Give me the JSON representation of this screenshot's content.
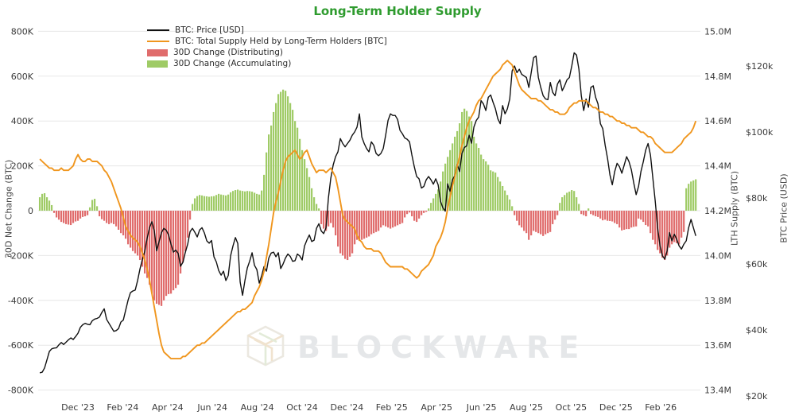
{
  "title": "Long-Term Holder Supply",
  "watermark": {
    "text": "BLOCKWARE",
    "logo": "isometric-cube-logo"
  },
  "colors": {
    "title_green": "#2e9b2e",
    "price_line": "#111111",
    "supply_line": "#f0961e",
    "distributing_red": "#e06c6c",
    "accumulating_green": "#9fcb66",
    "gridline": "#e7e7e7",
    "tick_text": "#3a3a3a",
    "watermark_gray": "#e5e7e9"
  },
  "legend": {
    "items": [
      {
        "label": "BTC: Price [USD]",
        "type": "line",
        "color": "#111111"
      },
      {
        "label": "BTC: Total Supply Held by Long-Term Holders [BTC]",
        "type": "line",
        "color": "#f0961e"
      },
      {
        "label": "30D Change (Distributing)",
        "type": "bar",
        "color": "#e06c6c"
      },
      {
        "label": "30D Change (Accumulating)",
        "type": "bar",
        "color": "#9fcb66"
      }
    ]
  },
  "axes": {
    "left": {
      "title": "30D Net Change (BTC)",
      "ticks": [
        {
          "v": 800,
          "label": "800K"
        },
        {
          "v": 600,
          "label": "600K"
        },
        {
          "v": 400,
          "label": "400K"
        },
        {
          "v": 200,
          "label": "200K"
        },
        {
          "v": 0,
          "label": "0"
        },
        {
          "v": -200,
          "label": "-200K"
        },
        {
          "v": -400,
          "label": "-400K"
        },
        {
          "v": -600,
          "label": "-600K"
        },
        {
          "v": -800,
          "label": "-800K"
        }
      ]
    },
    "right_supply": {
      "title": "LTH Supply (BTC)",
      "ticks": [
        {
          "v": 15.0,
          "label": "15.0M"
        },
        {
          "v": 14.8,
          "label": "14.8M"
        },
        {
          "v": 14.6,
          "label": "14.6M"
        },
        {
          "v": 14.4,
          "label": "14.4M"
        },
        {
          "v": 14.2,
          "label": "14.2M"
        },
        {
          "v": 14.0,
          "label": "14.0M"
        },
        {
          "v": 13.8,
          "label": "13.8M"
        },
        {
          "v": 13.6,
          "label": "13.6M"
        },
        {
          "v": 13.4,
          "label": "13.4M"
        }
      ]
    },
    "right_price": {
      "title": "BTC Price (USD)",
      "ticks": [
        {
          "v": 120,
          "label": "$120k"
        },
        {
          "v": 100,
          "label": "$100k"
        },
        {
          "v": 80,
          "label": "$80k"
        },
        {
          "v": 60,
          "label": "$60k"
        },
        {
          "v": 40,
          "label": "$40k"
        },
        {
          "v": 20,
          "label": "$20k"
        }
      ]
    },
    "x": {
      "ticks": [
        {
          "m": 0,
          "label": "Dec '23"
        },
        {
          "m": 2,
          "label": "Feb '24"
        },
        {
          "m": 4,
          "label": "Apr '24"
        },
        {
          "m": 6,
          "label": "Jun '24"
        },
        {
          "m": 8,
          "label": "Aug '24"
        },
        {
          "m": 10,
          "label": "Oct '24"
        },
        {
          "m": 12,
          "label": "Dec '24"
        },
        {
          "m": 14,
          "label": "Feb '25"
        },
        {
          "m": 16,
          "label": "Apr '25"
        },
        {
          "m": 18,
          "label": "Jun '25"
        },
        {
          "m": 20,
          "label": "Aug '25"
        },
        {
          "m": 22,
          "label": "Oct '25"
        },
        {
          "m": 24,
          "label": "Dec '25"
        },
        {
          "m": 26,
          "label": "Feb '26"
        }
      ]
    }
  },
  "chart_data": {
    "type": "mixed",
    "title": "Long-Term Holder Supply",
    "x_axis_note": "m = months since Dec 1 2023; data sampled ~every 3.25 days (m_step 0.1064) from mid-Oct 2023 (m=-1.7) to mid-Mar 2026 (m=27.5)",
    "grid": "horizontal-only",
    "legend_position": "top-left",
    "m_start": -1.7,
    "m_step": 0.1064,
    "series": [
      {
        "name": "BTC: Price [USD]",
        "type": "line",
        "axis": "right_price",
        "unit": "thousand USD",
        "color": "#111111",
        "values": [
          27,
          27.2,
          28.5,
          31,
          33.5,
          34.3,
          34.5,
          34.6,
          35.5,
          36.2,
          35.6,
          36.3,
          37,
          37.6,
          37.1,
          38,
          39,
          40.8,
          41.6,
          42,
          41.7,
          41.6,
          42.8,
          43.3,
          43.5,
          43.9,
          45.3,
          46.4,
          43.2,
          42,
          40.8,
          39.6,
          39.8,
          40.4,
          42.4,
          43,
          46,
          49,
          51.3,
          51.8,
          52.1,
          55,
          58.5,
          61.4,
          63.8,
          67.8,
          71,
          72.8,
          70,
          64,
          66.8,
          69.5,
          70.8,
          70.2,
          68.8,
          66,
          63.6,
          64.2,
          63.2,
          59.3,
          60.5,
          63.5,
          66,
          69.8,
          70.8,
          69.6,
          68.2,
          70.3,
          71,
          69.4,
          67,
          66.3,
          67.1,
          62.2,
          60.6,
          58,
          56.6,
          57.8,
          55,
          56.5,
          62.5,
          65.5,
          68,
          66.2,
          54.5,
          50.5,
          55,
          58.8,
          60.9,
          63.4,
          59.6,
          58.3,
          54.2,
          56.4,
          59.2,
          57.8,
          61.8,
          63.3,
          63.6,
          62.2,
          63.4,
          58.6,
          60,
          61.8,
          63,
          62.3,
          60.8,
          61,
          63,
          62.4,
          61.2,
          65.5,
          67.3,
          68.8,
          66.8,
          67.2,
          70.8,
          72.2,
          70,
          69.2,
          71,
          80,
          86,
          90,
          92.5,
          94,
          98,
          96.5,
          95.5,
          96.5,
          97.5,
          99,
          100,
          101.5,
          105.5,
          98.5,
          96.5,
          95,
          94,
          97,
          96,
          93.5,
          92.8,
          93.5,
          95,
          99,
          103.5,
          105.5,
          105,
          105,
          103.8,
          100.5,
          99.5,
          98.2,
          97.8,
          97,
          93,
          89.5,
          86.5,
          85.8,
          83,
          83.5,
          85.5,
          86.5,
          85.5,
          84.2,
          85.8,
          84,
          79,
          77,
          76,
          84.3,
          82,
          85.5,
          86.8,
          90.2,
          88,
          93.5,
          95.3,
          95.8,
          99,
          96.6,
          101.5,
          103.5,
          104.5,
          109.5,
          108.5,
          106.5,
          110.5,
          111.2,
          109,
          107,
          104,
          102.5,
          108,
          105.5,
          107,
          110,
          118.5,
          120,
          118,
          119,
          117.5,
          117,
          116.5,
          113.5,
          118,
          122.5,
          123,
          116.5,
          113.5,
          111,
          110,
          109.8,
          115,
          112,
          111,
          114.5,
          115.8,
          112.5,
          114,
          115.8,
          116.5,
          120,
          124,
          123.3,
          119,
          111,
          106.5,
          110,
          107.5,
          113.5,
          114,
          110.5,
          108.5,
          102.5,
          101,
          96,
          92,
          87,
          84,
          88,
          90.5,
          89.5,
          87.5,
          90,
          92.5,
          91,
          88.5,
          84.5,
          81,
          83.5,
          88,
          91,
          94.5,
          96.5,
          93,
          86,
          79,
          71,
          65.5,
          62.5,
          61.5,
          64,
          69.5,
          67,
          69,
          67.5,
          65.5,
          64.5,
          66,
          67,
          71,
          73.5,
          71,
          68.5
        ]
      },
      {
        "name": "BTC: Total Supply Held by Long-Term Holders [BTC]",
        "type": "line",
        "axis": "right_supply",
        "unit": "million BTC",
        "color": "#f0961e",
        "values": [
          14.43,
          14.42,
          14.41,
          14.4,
          14.39,
          14.39,
          14.38,
          14.38,
          14.38,
          14.39,
          14.38,
          14.38,
          14.38,
          14.39,
          14.4,
          14.43,
          14.45,
          14.43,
          14.42,
          14.42,
          14.43,
          14.43,
          14.42,
          14.42,
          14.42,
          14.41,
          14.4,
          14.38,
          14.37,
          14.35,
          14.33,
          14.3,
          14.27,
          14.24,
          14.21,
          14.17,
          14.13,
          14.11,
          14.09,
          14.08,
          14.07,
          14.06,
          14.04,
          14.01,
          13.98,
          13.94,
          13.89,
          13.83,
          13.77,
          13.71,
          13.65,
          13.6,
          13.57,
          13.56,
          13.55,
          13.54,
          13.54,
          13.54,
          13.54,
          13.54,
          13.55,
          13.55,
          13.56,
          13.57,
          13.58,
          13.59,
          13.6,
          13.6,
          13.61,
          13.61,
          13.62,
          13.63,
          13.64,
          13.65,
          13.66,
          13.67,
          13.68,
          13.69,
          13.7,
          13.71,
          13.72,
          13.73,
          13.74,
          13.75,
          13.75,
          13.76,
          13.76,
          13.77,
          13.78,
          13.79,
          13.82,
          13.84,
          13.86,
          13.89,
          13.93,
          13.99,
          14.05,
          14.12,
          14.19,
          14.24,
          14.28,
          14.33,
          14.38,
          14.42,
          14.44,
          14.45,
          14.46,
          14.47,
          14.45,
          14.43,
          14.44,
          14.46,
          14.47,
          14.44,
          14.41,
          14.39,
          14.37,
          14.38,
          14.38,
          14.38,
          14.37,
          14.38,
          14.39,
          14.37,
          14.35,
          14.3,
          14.24,
          14.18,
          14.16,
          14.15,
          14.14,
          14.13,
          14.12,
          14.09,
          14.07,
          14.06,
          14.04,
          14.03,
          14.03,
          14.03,
          14.02,
          14.02,
          14.02,
          14.01,
          13.99,
          13.97,
          13.96,
          13.95,
          13.95,
          13.95,
          13.95,
          13.95,
          13.95,
          13.94,
          13.94,
          13.93,
          13.92,
          13.91,
          13.9,
          13.91,
          13.93,
          13.94,
          13.95,
          13.96,
          13.98,
          14.0,
          14.04,
          14.06,
          14.08,
          14.11,
          14.15,
          14.21,
          14.26,
          14.31,
          14.35,
          14.4,
          14.44,
          14.49,
          14.53,
          14.57,
          14.6,
          14.62,
          14.64,
          14.67,
          14.69,
          14.7,
          14.72,
          14.74,
          14.76,
          14.78,
          14.8,
          14.81,
          14.82,
          14.83,
          14.85,
          14.86,
          14.87,
          14.86,
          14.85,
          14.82,
          14.79,
          14.76,
          14.74,
          14.73,
          14.72,
          14.71,
          14.7,
          14.7,
          14.7,
          14.69,
          14.69,
          14.68,
          14.67,
          14.66,
          14.65,
          14.65,
          14.64,
          14.64,
          14.63,
          14.63,
          14.63,
          14.64,
          14.66,
          14.67,
          14.68,
          14.68,
          14.69,
          14.69,
          14.69,
          14.69,
          14.68,
          14.67,
          14.66,
          14.66,
          14.65,
          14.64,
          14.64,
          14.63,
          14.63,
          14.62,
          14.62,
          14.61,
          14.6,
          14.6,
          14.59,
          14.59,
          14.58,
          14.58,
          14.57,
          14.57,
          14.57,
          14.56,
          14.55,
          14.55,
          14.54,
          14.53,
          14.53,
          14.52,
          14.5,
          14.49,
          14.48,
          14.47,
          14.46,
          14.46,
          14.46,
          14.46,
          14.47,
          14.48,
          14.49,
          14.5,
          14.52,
          14.53,
          14.54,
          14.55,
          14.57,
          14.6
        ]
      },
      {
        "name": "30D Net Change",
        "type": "bar",
        "axis": "left",
        "unit": "thousand BTC",
        "color_positive": "#9fcb66",
        "color_negative": "#e06c6c",
        "positive_means": "Accumulating",
        "negative_means": "Distributing",
        "values": [
          60,
          75,
          78,
          60,
          45,
          25,
          -10,
          -30,
          -40,
          -50,
          -55,
          -60,
          -62,
          -64,
          -55,
          -48,
          -45,
          -35,
          -28,
          -25,
          -20,
          15,
          48,
          53,
          20,
          -25,
          -38,
          -45,
          -55,
          -60,
          -55,
          -60,
          -70,
          -85,
          -100,
          -110,
          -125,
          -150,
          -165,
          -180,
          -190,
          -200,
          -220,
          -250,
          -280,
          -300,
          -330,
          -370,
          -400,
          -415,
          -420,
          -425,
          -400,
          -380,
          -372,
          -370,
          -355,
          -345,
          -330,
          -280,
          -230,
          -180,
          -120,
          -40,
          30,
          55,
          65,
          70,
          68,
          65,
          64,
          62,
          64,
          65,
          70,
          75,
          72,
          70,
          68,
          72,
          82,
          88,
          92,
          94,
          90,
          88,
          86,
          88,
          87,
          85,
          80,
          75,
          72,
          90,
          160,
          260,
          340,
          380,
          440,
          480,
          520,
          530,
          540,
          535,
          510,
          480,
          450,
          400,
          370,
          320,
          270,
          230,
          190,
          150,
          100,
          60,
          30,
          10,
          -60,
          -80,
          -90,
          -70,
          -55,
          -75,
          -110,
          -160,
          -190,
          -200,
          -215,
          -220,
          -205,
          -190,
          -150,
          -130,
          -135,
          -130,
          -125,
          -120,
          -115,
          -105,
          -100,
          -95,
          -90,
          -75,
          -65,
          -70,
          -75,
          -80,
          -75,
          -70,
          -65,
          -60,
          -55,
          -30,
          -15,
          -8,
          -25,
          -45,
          -50,
          -35,
          -20,
          -10,
          -5,
          10,
          35,
          55,
          75,
          95,
          130,
          175,
          210,
          240,
          270,
          300,
          330,
          355,
          390,
          440,
          455,
          445,
          420,
          400,
          330,
          300,
          280,
          250,
          230,
          220,
          205,
          180,
          175,
          170,
          150,
          130,
          110,
          90,
          70,
          50,
          20,
          -20,
          -45,
          -65,
          -75,
          -90,
          -100,
          -130,
          -110,
          -90,
          -95,
          -100,
          -105,
          -113,
          -105,
          -100,
          -95,
          -60,
          -40,
          -20,
          35,
          60,
          70,
          80,
          85,
          92,
          88,
          60,
          30,
          -15,
          -20,
          -25,
          10,
          -15,
          -20,
          -25,
          -28,
          -35,
          -43,
          -40,
          -45,
          -46,
          -48,
          -55,
          -60,
          -75,
          -88,
          -85,
          -82,
          -82,
          -75,
          -72,
          -70,
          -35,
          -40,
          -50,
          -64,
          -70,
          -100,
          -130,
          -150,
          -175,
          -190,
          -210,
          -220,
          -200,
          -165,
          -150,
          -140,
          -145,
          -150,
          -120,
          -95,
          100,
          120,
          130,
          135,
          140
        ]
      }
    ]
  }
}
